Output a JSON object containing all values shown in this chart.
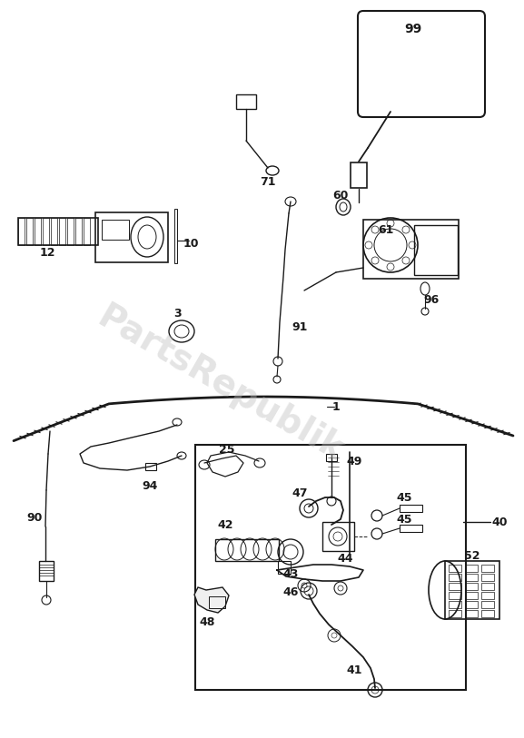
{
  "bg_color": "#ffffff",
  "line_color": "#1a1a1a",
  "watermark_color": "#bbbbbb",
  "watermark_text": "PartsRepublik",
  "fig_width": 5.77,
  "fig_height": 8.13,
  "dpi": 100
}
